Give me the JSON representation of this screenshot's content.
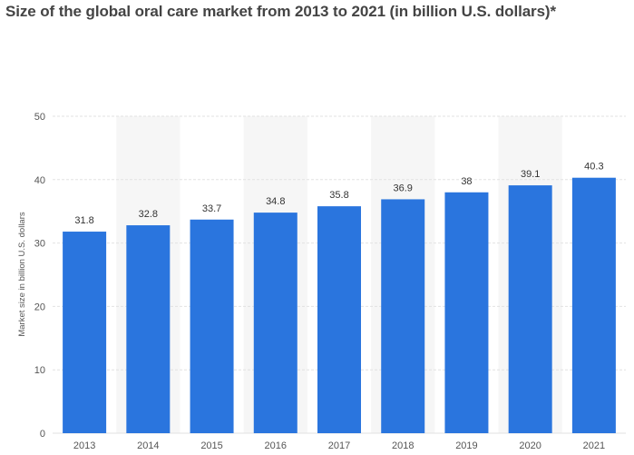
{
  "colors": {
    "bar": "#2a75de",
    "grid": "#e2e2e2",
    "band": "#f6f6f6"
  },
  "chart_data": {
    "type": "bar",
    "title": "Size of the global oral care market from 2013 to 2021 (in billion U.S. dollars)*",
    "xlabel": "",
    "ylabel": "Market size in billion U.S. dollars",
    "categories": [
      "2013",
      "2014",
      "2015",
      "2016",
      "2017",
      "2018",
      "2019",
      "2020",
      "2021"
    ],
    "values": [
      31.8,
      32.8,
      33.7,
      34.8,
      35.8,
      36.9,
      38,
      39.1,
      40.3
    ],
    "value_labels": [
      "31.8",
      "32.8",
      "33.7",
      "34.8",
      "35.8",
      "36.9",
      "38",
      "39.1",
      "40.3"
    ],
    "ylim": [
      0,
      50
    ],
    "yticks": [
      0,
      10,
      20,
      30,
      40,
      50
    ],
    "grid": true,
    "legend": "none"
  }
}
